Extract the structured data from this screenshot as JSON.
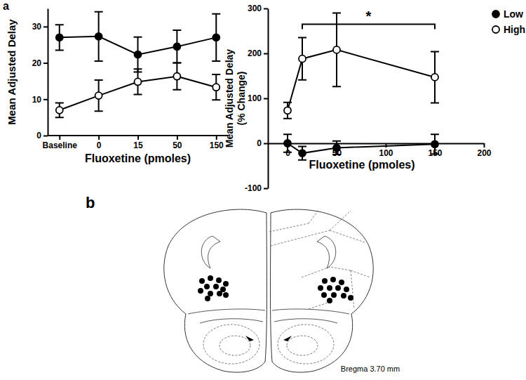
{
  "chart_data": [
    {
      "type": "line",
      "annotations": [
        {
          "text": "a"
        }
      ],
      "xlabel": "Fluoxetine (pmoles)",
      "ylabel": "Mean Adjusted Delay",
      "categories": [
        "Baseline",
        "0",
        "15",
        "50",
        "150"
      ],
      "ylim": [
        0,
        35
      ],
      "yticks": [
        0,
        10,
        20,
        30
      ],
      "series": [
        {
          "color": "#000000",
          "marker": "circle",
          "values": [
            27,
            27.3,
            22.3,
            24.5,
            27
          ],
          "errors": [
            3.5,
            6.8,
            4.8,
            4.5,
            6.5
          ]
        },
        {
          "color": "#000000",
          "marker": "circle-open",
          "values": [
            7,
            11,
            14.8,
            16.3,
            13.3
          ],
          "errors": [
            2,
            4.3,
            3.5,
            3.7,
            3.5
          ]
        }
      ]
    },
    {
      "type": "line",
      "xlabel": "Fluoxetine (pmoles)",
      "ylabel": [
        "Mean Adjusted Delay",
        "(% Change)"
      ],
      "x": [
        0,
        15,
        50,
        150
      ],
      "xlim": [
        -20,
        200
      ],
      "xticks": [
        0,
        50,
        100,
        150,
        200
      ],
      "ylim": [
        -100,
        300
      ],
      "yticks": [
        -100,
        0,
        100,
        200,
        300
      ],
      "legend": "right",
      "annotations": [
        {
          "text": "*",
          "x": [
            15,
            150
          ],
          "y": 265
        }
      ],
      "series": [
        {
          "name": "Low",
          "color": "#000000",
          "marker": "circle",
          "values": [
            0,
            -22,
            -10,
            -2
          ],
          "errors": [
            20,
            15,
            15,
            22
          ]
        },
        {
          "name": "High",
          "color": "#000000",
          "marker": "circle-open",
          "values": [
            73,
            188,
            208,
            147
          ],
          "errors": [
            18,
            47,
            82,
            57
          ]
        }
      ]
    }
  ],
  "diagram": {
    "label": "b",
    "caption": "Bregma 3.70 mm"
  }
}
